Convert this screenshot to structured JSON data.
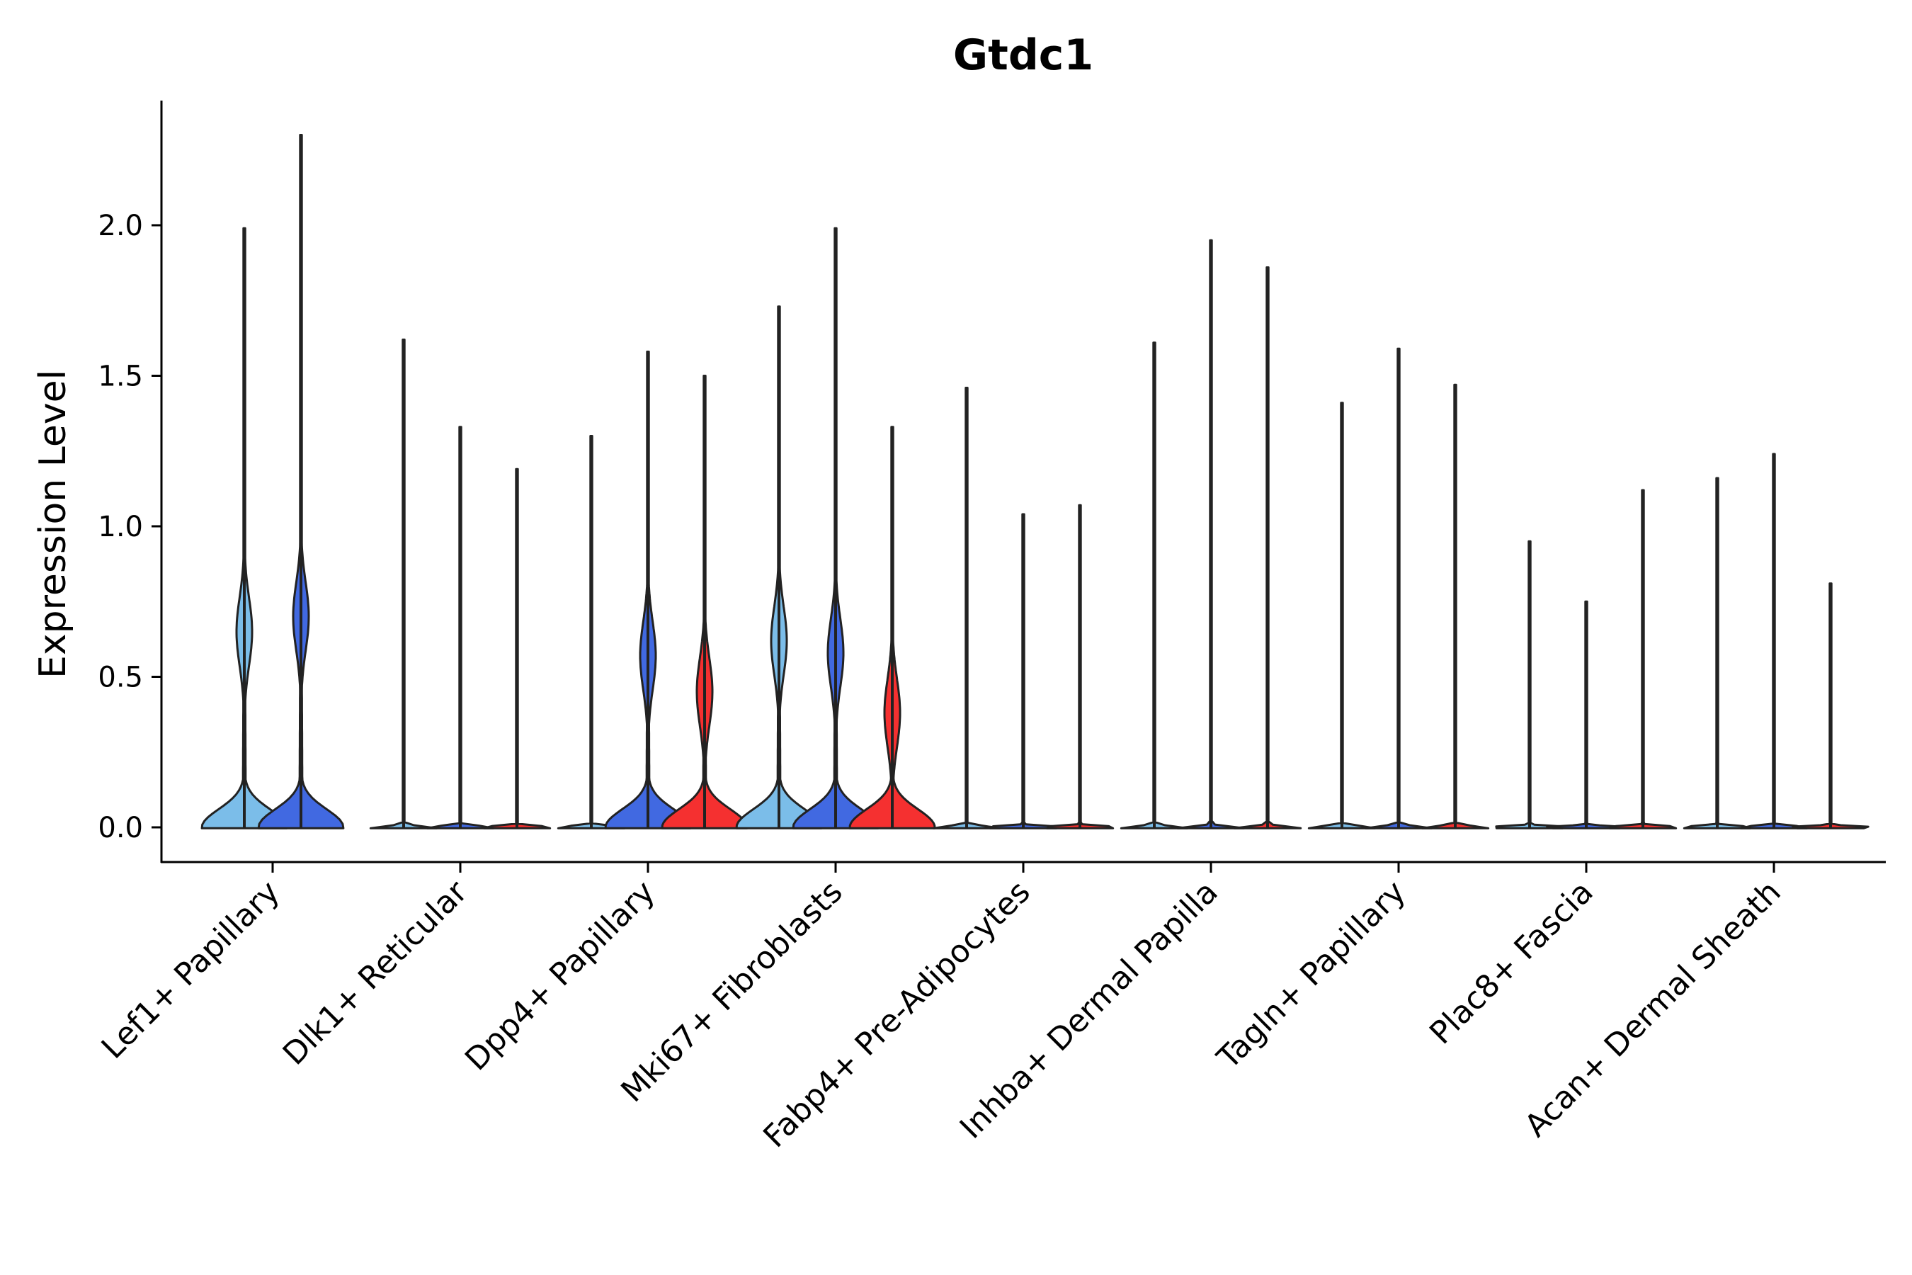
{
  "chart_data": {
    "type": "violin",
    "title": "Gtdc1",
    "xlabel": "",
    "ylabel": "Expression Level",
    "ylim": [
      -0.12,
      2.42
    ],
    "yticks": [
      0.0,
      0.5,
      1.0,
      1.5,
      2.0
    ],
    "ytick_labels": [
      "0.0",
      "0.5",
      "1.0",
      "1.5",
      "2.0"
    ],
    "grid": false,
    "legend": "none",
    "group_colors": {
      "light": "#7bbde9",
      "blue": "#4169e1",
      "red": "#f53030"
    },
    "categories": [
      "Lef1+ Papillary",
      "Dlk1+ Reticular",
      "Dpp4+ Papillary",
      "Mki67+ Fibroblasts",
      "Fabp4+ Pre-Adipocytes",
      "Inhba+ Dermal Papilla",
      "Tagln+ Papillary",
      "Plac8+ Fascia",
      "Acan+ Dermal Sheath"
    ],
    "violins": [
      {
        "category": "Lef1+ Papillary",
        "slot": 0,
        "group": "light",
        "max": 1.99,
        "shape": "bimodal",
        "mode": 0.65
      },
      {
        "category": "Lef1+ Papillary",
        "slot": 1,
        "group": "blue",
        "max": 2.3,
        "shape": "bimodal",
        "mode": 0.7
      },
      {
        "category": "Dlk1+ Reticular",
        "slot": 0,
        "group": "light",
        "max": 1.62,
        "shape": "flat"
      },
      {
        "category": "Dlk1+ Reticular",
        "slot": 1,
        "group": "blue",
        "max": 1.33,
        "shape": "flat"
      },
      {
        "category": "Dlk1+ Reticular",
        "slot": 2,
        "group": "red",
        "max": 1.19,
        "shape": "flat"
      },
      {
        "category": "Dpp4+ Papillary",
        "slot": 0,
        "group": "light",
        "max": 1.3,
        "shape": "flat"
      },
      {
        "category": "Dpp4+ Papillary",
        "slot": 1,
        "group": "blue",
        "max": 1.58,
        "shape": "bimodal",
        "mode": 0.57
      },
      {
        "category": "Dpp4+ Papillary",
        "slot": 2,
        "group": "red",
        "max": 1.5,
        "shape": "bimodal",
        "mode": 0.45
      },
      {
        "category": "Mki67+ Fibroblasts",
        "slot": 0,
        "group": "light",
        "max": 1.73,
        "shape": "bimodal",
        "mode": 0.62
      },
      {
        "category": "Mki67+ Fibroblasts",
        "slot": 1,
        "group": "blue",
        "max": 1.99,
        "shape": "bimodal",
        "mode": 0.58
      },
      {
        "category": "Mki67+ Fibroblasts",
        "slot": 2,
        "group": "red",
        "max": 1.33,
        "shape": "bimodal",
        "mode": 0.38
      },
      {
        "category": "Fabp4+ Pre-Adipocytes",
        "slot": 0,
        "group": "light",
        "max": 1.46,
        "shape": "flat"
      },
      {
        "category": "Fabp4+ Pre-Adipocytes",
        "slot": 1,
        "group": "blue",
        "max": 1.04,
        "shape": "flat"
      },
      {
        "category": "Fabp4+ Pre-Adipocytes",
        "slot": 2,
        "group": "red",
        "max": 1.07,
        "shape": "flat"
      },
      {
        "category": "Inhba+ Dermal Papilla",
        "slot": 0,
        "group": "light",
        "max": 1.61,
        "shape": "flat"
      },
      {
        "category": "Inhba+ Dermal Papilla",
        "slot": 1,
        "group": "blue",
        "max": 1.95,
        "shape": "flat"
      },
      {
        "category": "Inhba+ Dermal Papilla",
        "slot": 2,
        "group": "red",
        "max": 1.86,
        "shape": "flat"
      },
      {
        "category": "Tagln+ Papillary",
        "slot": 0,
        "group": "light",
        "max": 1.41,
        "shape": "flat"
      },
      {
        "category": "Tagln+ Papillary",
        "slot": 1,
        "group": "blue",
        "max": 1.59,
        "shape": "flat"
      },
      {
        "category": "Tagln+ Papillary",
        "slot": 2,
        "group": "red",
        "max": 1.47,
        "shape": "flat"
      },
      {
        "category": "Plac8+ Fascia",
        "slot": 0,
        "group": "light",
        "max": 0.95,
        "shape": "flat"
      },
      {
        "category": "Plac8+ Fascia",
        "slot": 1,
        "group": "blue",
        "max": 0.75,
        "shape": "flat"
      },
      {
        "category": "Plac8+ Fascia",
        "slot": 2,
        "group": "red",
        "max": 1.12,
        "shape": "flat"
      },
      {
        "category": "Acan+ Dermal Sheath",
        "slot": 0,
        "group": "light",
        "max": 1.16,
        "shape": "flat"
      },
      {
        "category": "Acan+ Dermal Sheath",
        "slot": 1,
        "group": "blue",
        "max": 1.24,
        "shape": "flat"
      },
      {
        "category": "Acan+ Dermal Sheath",
        "slot": 2,
        "group": "red",
        "max": 0.81,
        "shape": "flat"
      }
    ]
  }
}
